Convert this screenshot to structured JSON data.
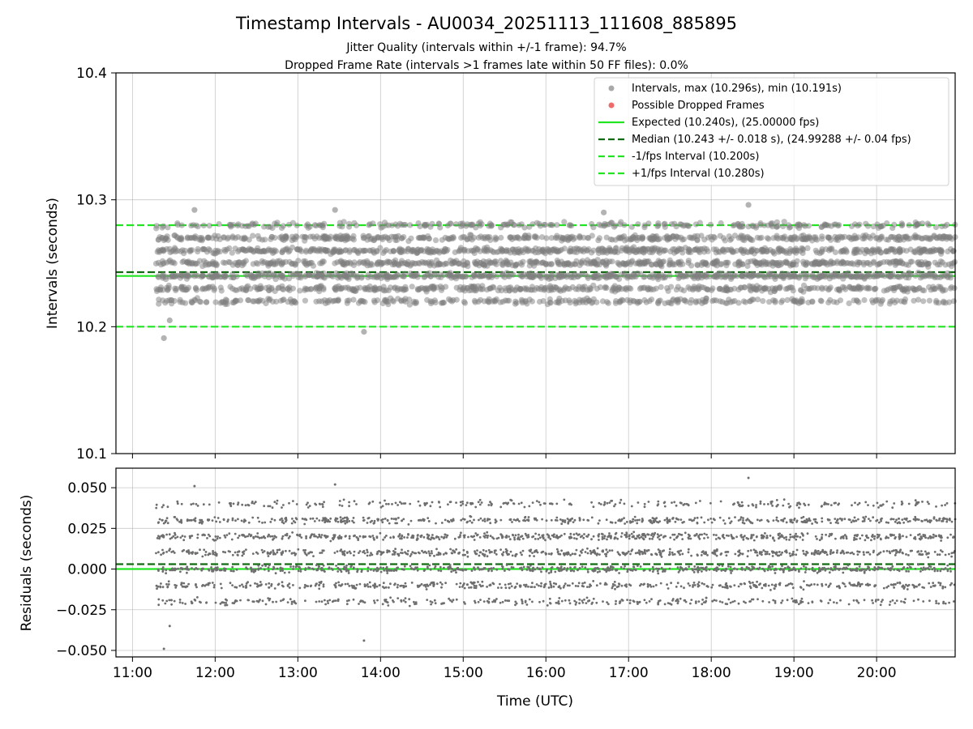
{
  "chart_data": [
    {
      "type": "scatter",
      "title": "Timestamp Intervals - AU0034_20251113_111608_885895",
      "subtitle_lines": [
        "Jitter Quality (intervals within +/-1 frame): 94.7%",
        "Dropped Frame Rate (intervals >1 frames late within 50 FF files): 0.0%"
      ],
      "ylabel": "Intervals (seconds)",
      "xlim_hours": [
        10.8,
        20.95
      ],
      "ylim": [
        10.1,
        10.4
      ],
      "yticks": [
        10.1,
        10.2,
        10.3,
        10.4
      ],
      "ytick_labels": [
        "10.1",
        "10.2",
        "10.3",
        "10.4"
      ],
      "grid": true,
      "legend_position": "top-right",
      "legend": [
        {
          "label": "Intervals, max (10.296s), min (10.191s)",
          "kind": "marker",
          "color": "#a9a9a9"
        },
        {
          "label": "Possible Dropped Frames",
          "kind": "marker",
          "color": "#f06a6a"
        },
        {
          "label": "Expected (10.240s), (25.00000 fps)",
          "kind": "solid",
          "color": "#22e522"
        },
        {
          "label": "Median (10.243 +/- 0.018 s), (24.99288 +/- 0.04 fps)",
          "kind": "dashed",
          "color": "#116b11"
        },
        {
          "label": "-1/fps Interval (10.200s)",
          "kind": "dashed",
          "color": "#22e522"
        },
        {
          "label": "+1/fps Interval (10.280s)",
          "kind": "dashed",
          "color": "#22e522"
        }
      ],
      "lines": [
        {
          "name": "Expected",
          "y": 10.24,
          "style": "solid",
          "color": "#22e522"
        },
        {
          "name": "Median",
          "y": 10.243,
          "style": "dashed",
          "color": "#116b11"
        },
        {
          "name": "-1/fps Interval",
          "y": 10.2,
          "style": "dashed",
          "color": "#22e522"
        },
        {
          "name": "+1/fps Interval",
          "y": 10.28,
          "style": "dashed",
          "color": "#22e522"
        }
      ],
      "series": [
        {
          "name": "Intervals",
          "color": "#808080",
          "x_range_hours": [
            11.28,
            20.95
          ],
          "count": 3400,
          "levels": [
            10.22,
            10.23,
            10.24,
            10.25,
            10.26,
            10.27,
            10.28
          ],
          "level_weights": [
            0.1,
            0.15,
            0.18,
            0.17,
            0.18,
            0.14,
            0.08
          ],
          "jitter": 0.003,
          "min": 10.191,
          "max": 10.296,
          "extremes": [
            {
              "x": 11.38,
              "y": 10.191
            },
            {
              "x": 13.8,
              "y": 10.196
            },
            {
              "x": 11.45,
              "y": 10.205
            },
            {
              "x": 18.45,
              "y": 10.296
            },
            {
              "x": 11.75,
              "y": 10.292
            },
            {
              "x": 13.45,
              "y": 10.292
            },
            {
              "x": 16.7,
              "y": 10.29
            }
          ]
        }
      ],
      "dropped_frames": []
    },
    {
      "type": "scatter",
      "xlabel": "Time (UTC)",
      "ylabel": "Residuals (seconds)",
      "xlim_hours": [
        10.8,
        20.95
      ],
      "ylim": [
        -0.054,
        0.062
      ],
      "yticks": [
        -0.05,
        -0.025,
        0.0,
        0.025,
        0.05
      ],
      "ytick_labels": [
        "−0.050",
        "−0.025",
        "0.000",
        "0.025",
        "0.050"
      ],
      "xticks_hours": [
        11,
        12,
        13,
        14,
        15,
        16,
        17,
        18,
        19,
        20
      ],
      "xtick_labels": [
        "11:00",
        "12:00",
        "13:00",
        "14:00",
        "15:00",
        "16:00",
        "17:00",
        "18:00",
        "19:00",
        "20:00"
      ],
      "grid": true,
      "lines": [
        {
          "name": "Median residual",
          "y": 0.003,
          "style": "dashed",
          "color": "#116b11"
        },
        {
          "name": "Zero",
          "y": 0.0,
          "style": "solid",
          "color": "#22e522"
        }
      ],
      "series": [
        {
          "name": "Residuals",
          "color": "#6e6e6e",
          "x_range_hours": [
            11.28,
            20.95
          ],
          "count": 3400,
          "levels": [
            -0.02,
            -0.01,
            0.0,
            0.01,
            0.02,
            0.03,
            0.04
          ],
          "level_weights": [
            0.1,
            0.15,
            0.18,
            0.17,
            0.18,
            0.14,
            0.08
          ],
          "jitter": 0.003,
          "extremes": [
            {
              "x": 11.38,
              "y": -0.049
            },
            {
              "x": 18.45,
              "y": 0.056
            },
            {
              "x": 11.45,
              "y": -0.035
            },
            {
              "x": 13.8,
              "y": -0.044
            },
            {
              "x": 11.75,
              "y": 0.051
            },
            {
              "x": 13.45,
              "y": 0.052
            }
          ]
        }
      ]
    }
  ]
}
